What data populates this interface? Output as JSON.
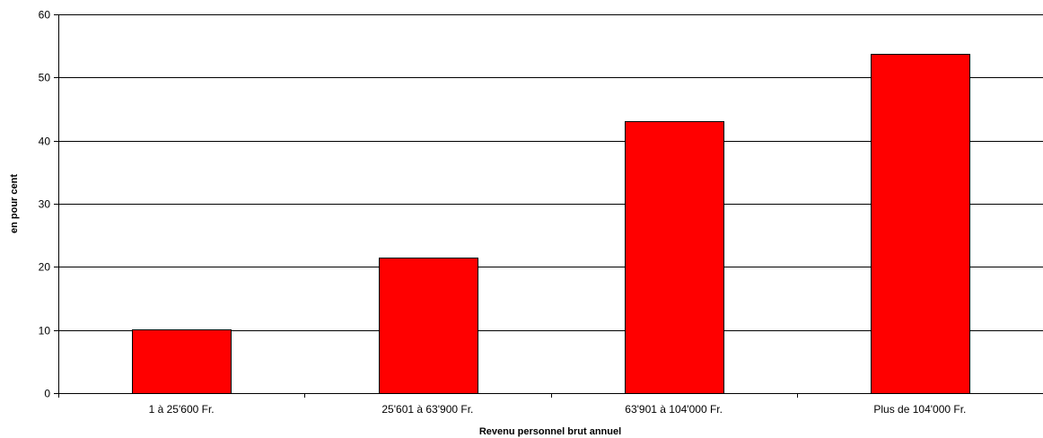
{
  "chart_data": {
    "type": "bar",
    "title": "",
    "xlabel": "Revenu personnel brut annuel",
    "ylabel": "en pour cent",
    "categories": [
      "1 à 25'600 Fr.",
      "25'601 à 63'900 Fr.",
      "63'901 à 104'000 Fr.",
      "Plus de 104'000 Fr."
    ],
    "values": [
      10.1,
      21.4,
      43.1,
      53.7
    ],
    "ylim": [
      0,
      60
    ],
    "yticks": [
      0,
      10,
      20,
      30,
      40,
      50,
      60
    ],
    "grid": true,
    "legend": "none",
    "colors": {
      "bar": "#ff0000",
      "bar_border": "#000000",
      "grid": "#000000",
      "axis": "#000000"
    }
  }
}
